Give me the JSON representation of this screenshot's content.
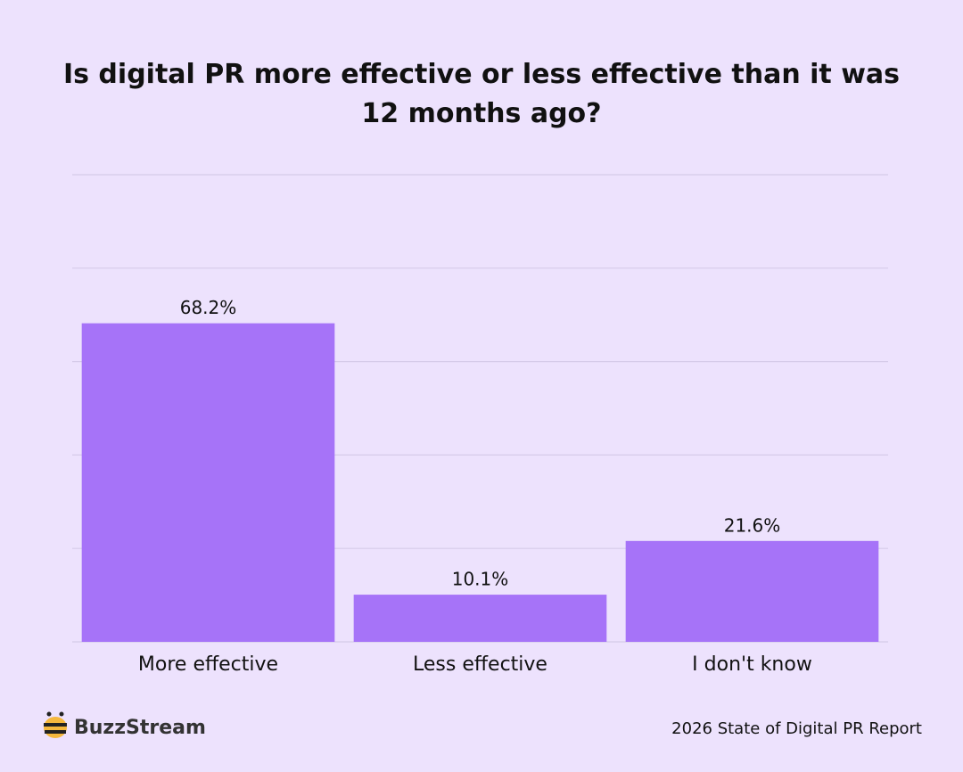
{
  "chart_data": {
    "type": "bar",
    "title": "Is digital PR more effective or less effective than it was 12 months ago?",
    "categories": [
      "More effective",
      "Less effective",
      "I don't know"
    ],
    "values": [
      68.2,
      10.1,
      21.6
    ],
    "value_labels": [
      "68.2%",
      "10.1%",
      "21.6%"
    ],
    "color": "#a673f8",
    "ylim": [
      0,
      100
    ],
    "yticks": [
      0,
      20,
      40,
      60,
      80,
      100
    ],
    "grid": true,
    "brand": "BuzzStream",
    "source": "2026 State of Digital PR Report"
  }
}
